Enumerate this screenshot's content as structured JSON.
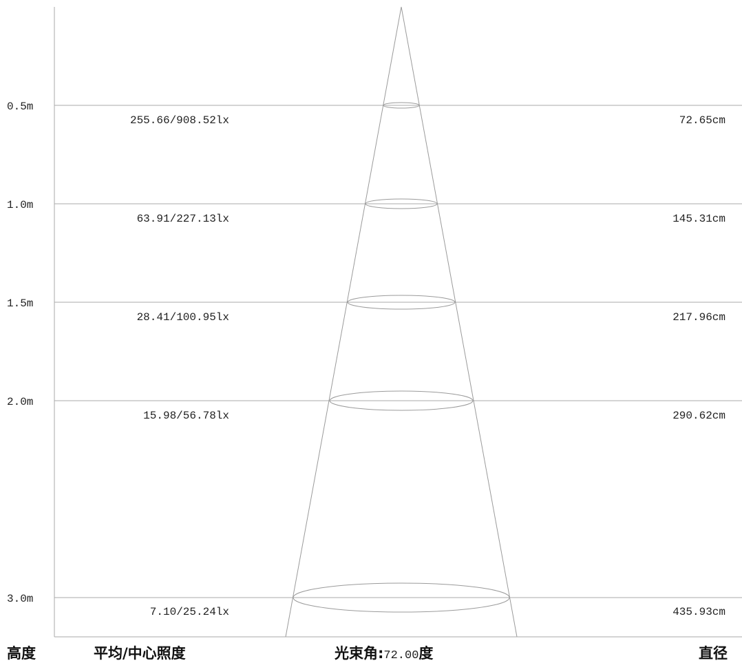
{
  "footer": {
    "height_label": "高度",
    "illuminance_label": "平均/中心照度",
    "beam_label": "光束角:",
    "beam_value": "72.00",
    "beam_unit": "度",
    "diameter_label": "直径"
  },
  "rows": [
    {
      "height": "0.5m",
      "illuminance": "255.66/908.52lx",
      "diameter": "72.65cm"
    },
    {
      "height": "1.0m",
      "illuminance": "63.91/227.13lx",
      "diameter": "145.31cm"
    },
    {
      "height": "1.5m",
      "illuminance": "28.41/100.95lx",
      "diameter": "217.96cm"
    },
    {
      "height": "2.0m",
      "illuminance": "15.98/56.78lx",
      "diameter": "290.62cm"
    },
    {
      "height": "3.0m",
      "illuminance": "7.10/25.24lx",
      "diameter": "435.93cm"
    }
  ],
  "colors": {
    "line": "#aaaaaa",
    "cone": "#9a9a9a",
    "text": "#222222"
  }
}
